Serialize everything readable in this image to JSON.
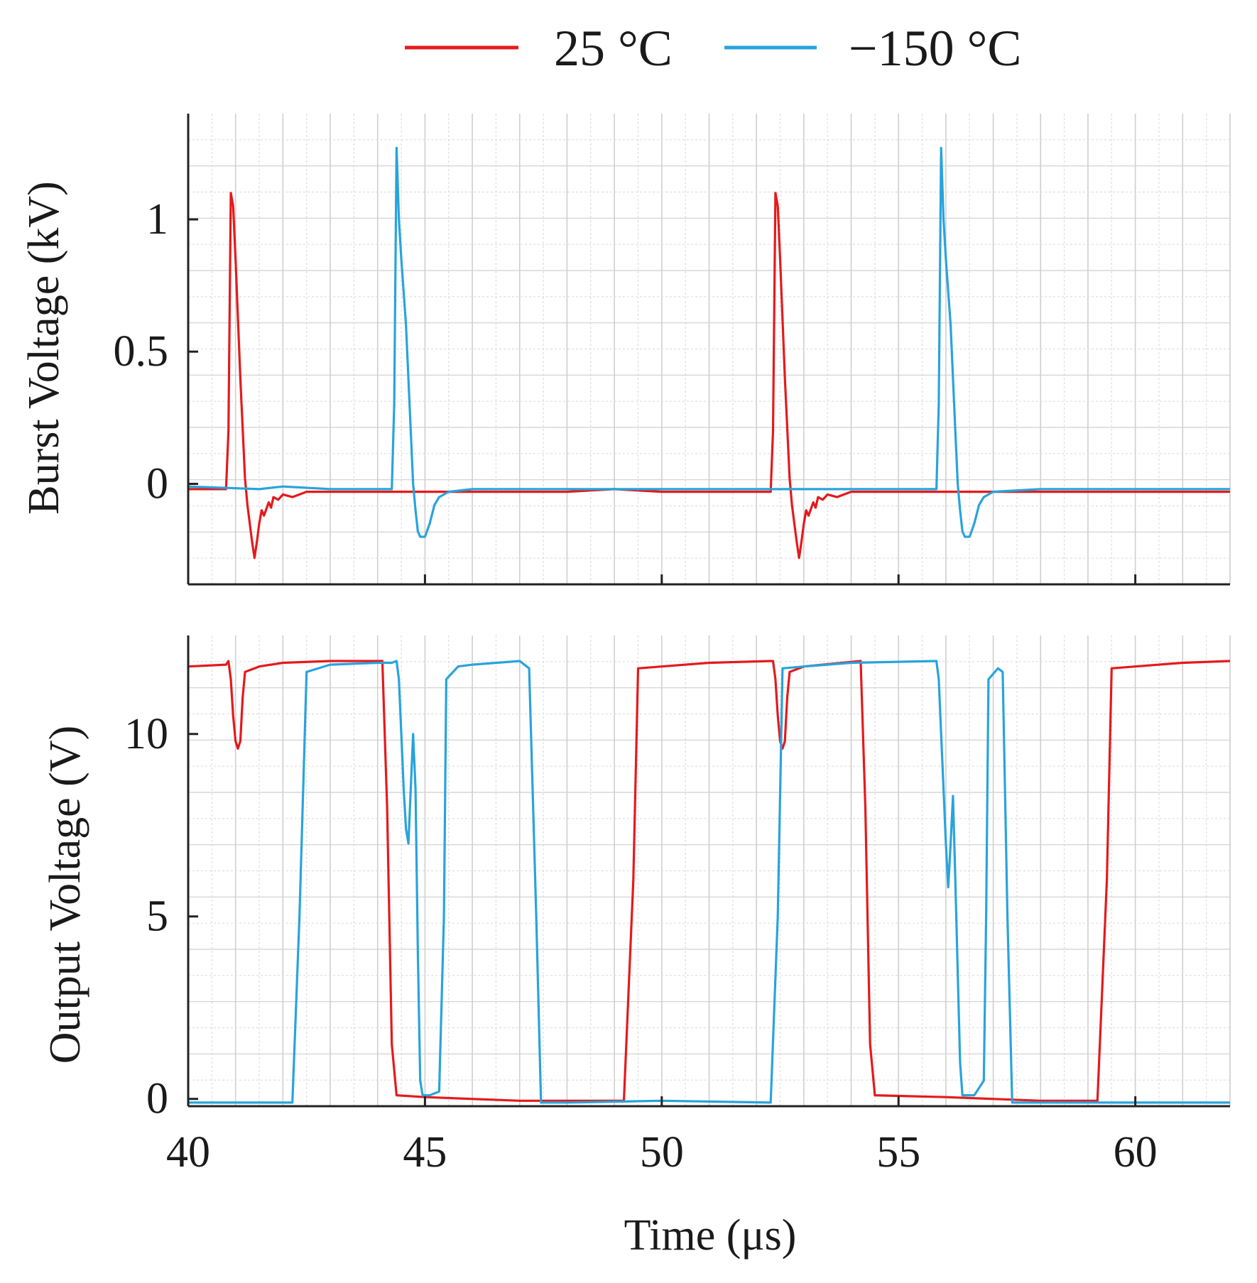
{
  "legend": [
    {
      "label": "25 °C",
      "color": "#e41a1c"
    },
    {
      "label": "−150 °C",
      "color": "#29a3dc"
    }
  ],
  "chart_data": [
    {
      "type": "line",
      "panel": "top",
      "title": "",
      "xlabel": "",
      "ylabel": "Burst Voltage (kV)",
      "xlim": [
        40,
        62
      ],
      "ylim": [
        -0.38,
        1.4
      ],
      "yticks": [
        0,
        0.5,
        1
      ],
      "ytick_labels": [
        "0",
        "0.5",
        "1"
      ],
      "series": [
        {
          "name": "25 °C",
          "color": "#e41a1c",
          "points": [
            [
              40,
              -0.02
            ],
            [
              40.8,
              -0.02
            ],
            [
              40.85,
              0.2
            ],
            [
              40.9,
              1.1
            ],
            [
              40.95,
              1.05
            ],
            [
              41.0,
              0.85
            ],
            [
              41.1,
              0.4
            ],
            [
              41.2,
              0.02
            ],
            [
              41.25,
              -0.08
            ],
            [
              41.3,
              -0.15
            ],
            [
              41.35,
              -0.22
            ],
            [
              41.4,
              -0.28
            ],
            [
              41.45,
              -0.22
            ],
            [
              41.5,
              -0.15
            ],
            [
              41.55,
              -0.1
            ],
            [
              41.6,
              -0.12
            ],
            [
              41.7,
              -0.07
            ],
            [
              41.75,
              -0.09
            ],
            [
              41.8,
              -0.05
            ],
            [
              41.9,
              -0.06
            ],
            [
              42.0,
              -0.04
            ],
            [
              42.2,
              -0.05
            ],
            [
              42.5,
              -0.03
            ],
            [
              44,
              -0.03
            ],
            [
              45,
              -0.03
            ],
            [
              48,
              -0.03
            ],
            [
              49,
              -0.02
            ],
            [
              50,
              -0.03
            ],
            [
              52.3,
              -0.03
            ],
            [
              52.35,
              0.2
            ],
            [
              52.4,
              1.1
            ],
            [
              52.45,
              1.05
            ],
            [
              52.5,
              0.85
            ],
            [
              52.6,
              0.4
            ],
            [
              52.7,
              0.02
            ],
            [
              52.75,
              -0.08
            ],
            [
              52.8,
              -0.15
            ],
            [
              52.85,
              -0.22
            ],
            [
              52.9,
              -0.28
            ],
            [
              52.95,
              -0.22
            ],
            [
              53.0,
              -0.15
            ],
            [
              53.05,
              -0.1
            ],
            [
              53.1,
              -0.12
            ],
            [
              53.2,
              -0.07
            ],
            [
              53.25,
              -0.09
            ],
            [
              53.3,
              -0.05
            ],
            [
              53.4,
              -0.06
            ],
            [
              53.5,
              -0.04
            ],
            [
              53.7,
              -0.05
            ],
            [
              54,
              -0.03
            ],
            [
              56,
              -0.03
            ],
            [
              58,
              -0.03
            ],
            [
              60,
              -0.03
            ],
            [
              62,
              -0.03
            ]
          ]
        },
        {
          "name": "−150 °C",
          "color": "#29a3dc",
          "points": [
            [
              40,
              -0.01
            ],
            [
              41.5,
              -0.02
            ],
            [
              42,
              -0.01
            ],
            [
              43,
              -0.02
            ],
            [
              44.3,
              -0.02
            ],
            [
              44.35,
              0.3
            ],
            [
              44.4,
              1.27
            ],
            [
              44.45,
              1.0
            ],
            [
              44.5,
              0.85
            ],
            [
              44.6,
              0.6
            ],
            [
              44.7,
              0.2
            ],
            [
              44.75,
              0.0
            ],
            [
              44.8,
              -0.1
            ],
            [
              44.85,
              -0.18
            ],
            [
              44.9,
              -0.2
            ],
            [
              45.0,
              -0.2
            ],
            [
              45.1,
              -0.15
            ],
            [
              45.2,
              -0.08
            ],
            [
              45.3,
              -0.05
            ],
            [
              45.5,
              -0.03
            ],
            [
              46,
              -0.02
            ],
            [
              48,
              -0.02
            ],
            [
              50,
              -0.02
            ],
            [
              52,
              -0.02
            ],
            [
              55.8,
              -0.02
            ],
            [
              55.85,
              0.3
            ],
            [
              55.9,
              1.27
            ],
            [
              55.95,
              1.0
            ],
            [
              56.0,
              0.85
            ],
            [
              56.1,
              0.6
            ],
            [
              56.2,
              0.2
            ],
            [
              56.25,
              0.0
            ],
            [
              56.3,
              -0.1
            ],
            [
              56.35,
              -0.18
            ],
            [
              56.4,
              -0.2
            ],
            [
              56.5,
              -0.2
            ],
            [
              56.6,
              -0.15
            ],
            [
              56.7,
              -0.08
            ],
            [
              56.8,
              -0.05
            ],
            [
              57,
              -0.03
            ],
            [
              58,
              -0.02
            ],
            [
              60,
              -0.02
            ],
            [
              62,
              -0.02
            ]
          ]
        }
      ]
    },
    {
      "type": "line",
      "panel": "bottom",
      "title": "",
      "xlabel": "Time (μs)",
      "ylabel": "Output Voltage (V)",
      "xlim": [
        40,
        62
      ],
      "ylim": [
        -0.2,
        12.7
      ],
      "xticks": [
        40,
        45,
        50,
        55,
        60
      ],
      "xtick_labels": [
        "40",
        "45",
        "50",
        "55",
        "60"
      ],
      "yticks": [
        0,
        5,
        10
      ],
      "ytick_labels": [
        "0",
        "5",
        "10"
      ],
      "series": [
        {
          "name": "25 °C",
          "color": "#e41a1c",
          "points": [
            [
              40,
              11.85
            ],
            [
              40.8,
              11.9
            ],
            [
              40.85,
              12.0
            ],
            [
              40.9,
              11.5
            ],
            [
              40.95,
              10.5
            ],
            [
              41.0,
              9.8
            ],
            [
              41.05,
              9.6
            ],
            [
              41.1,
              9.8
            ],
            [
              41.15,
              11.0
            ],
            [
              41.2,
              11.7
            ],
            [
              41.5,
              11.85
            ],
            [
              42.0,
              11.95
            ],
            [
              43,
              12.0
            ],
            [
              44.1,
              12.0
            ],
            [
              44.2,
              8.0
            ],
            [
              44.3,
              1.5
            ],
            [
              44.4,
              0.1
            ],
            [
              45,
              0.05
            ],
            [
              47,
              -0.05
            ],
            [
              49.2,
              -0.05
            ],
            [
              49.4,
              6.0
            ],
            [
              49.5,
              11.8
            ],
            [
              50,
              11.85
            ],
            [
              51,
              11.95
            ],
            [
              52.3,
              12.0
            ],
            [
              52.35,
              12.0
            ],
            [
              52.4,
              11.5
            ],
            [
              52.45,
              10.5
            ],
            [
              52.5,
              9.8
            ],
            [
              52.55,
              9.6
            ],
            [
              52.6,
              9.8
            ],
            [
              52.65,
              11.0
            ],
            [
              52.7,
              11.7
            ],
            [
              53,
              11.85
            ],
            [
              54.2,
              12.0
            ],
            [
              54.3,
              8.0
            ],
            [
              54.4,
              1.5
            ],
            [
              54.5,
              0.1
            ],
            [
              56,
              0.05
            ],
            [
              58,
              -0.05
            ],
            [
              59.2,
              -0.05
            ],
            [
              59.4,
              6.0
            ],
            [
              59.5,
              11.8
            ],
            [
              60,
              11.85
            ],
            [
              61,
              11.95
            ],
            [
              62,
              12.0
            ]
          ]
        },
        {
          "name": "−150 °C",
          "color": "#29a3dc",
          "points": [
            [
              40,
              -0.1
            ],
            [
              42.2,
              -0.1
            ],
            [
              42.35,
              5.0
            ],
            [
              42.5,
              11.7
            ],
            [
              43,
              11.9
            ],
            [
              44,
              11.95
            ],
            [
              44.3,
              11.95
            ],
            [
              44.4,
              12.0
            ],
            [
              44.45,
              11.5
            ],
            [
              44.5,
              10.0
            ],
            [
              44.55,
              8.5
            ],
            [
              44.6,
              7.4
            ],
            [
              44.65,
              7.0
            ],
            [
              44.7,
              8.5
            ],
            [
              44.75,
              10.0
            ],
            [
              44.8,
              8.5
            ],
            [
              44.85,
              4.0
            ],
            [
              44.9,
              0.5
            ],
            [
              44.95,
              0.1
            ],
            [
              45.1,
              0.1
            ],
            [
              45.3,
              0.2
            ],
            [
              45.4,
              5.0
            ],
            [
              45.45,
              11.5
            ],
            [
              45.7,
              11.85
            ],
            [
              46,
              11.9
            ],
            [
              47,
              12.0
            ],
            [
              47.2,
              11.8
            ],
            [
              47.35,
              5.0
            ],
            [
              47.45,
              -0.1
            ],
            [
              48,
              -0.1
            ],
            [
              50,
              -0.05
            ],
            [
              52.3,
              -0.1
            ],
            [
              52.45,
              5.0
            ],
            [
              52.55,
              11.8
            ],
            [
              53,
              11.85
            ],
            [
              54,
              11.95
            ],
            [
              55.8,
              12.0
            ],
            [
              55.85,
              11.5
            ],
            [
              55.9,
              10.0
            ],
            [
              55.95,
              8.5
            ],
            [
              56.0,
              7.0
            ],
            [
              56.05,
              5.8
            ],
            [
              56.1,
              7.0
            ],
            [
              56.15,
              8.3
            ],
            [
              56.2,
              6.0
            ],
            [
              56.3,
              1.0
            ],
            [
              56.35,
              0.1
            ],
            [
              56.6,
              0.1
            ],
            [
              56.8,
              0.5
            ],
            [
              56.85,
              5.0
            ],
            [
              56.9,
              11.5
            ],
            [
              57.1,
              11.8
            ],
            [
              57.2,
              11.7
            ],
            [
              57.3,
              5.0
            ],
            [
              57.4,
              -0.1
            ],
            [
              58,
              -0.1
            ],
            [
              60,
              -0.1
            ],
            [
              62,
              -0.1
            ]
          ]
        }
      ]
    }
  ]
}
